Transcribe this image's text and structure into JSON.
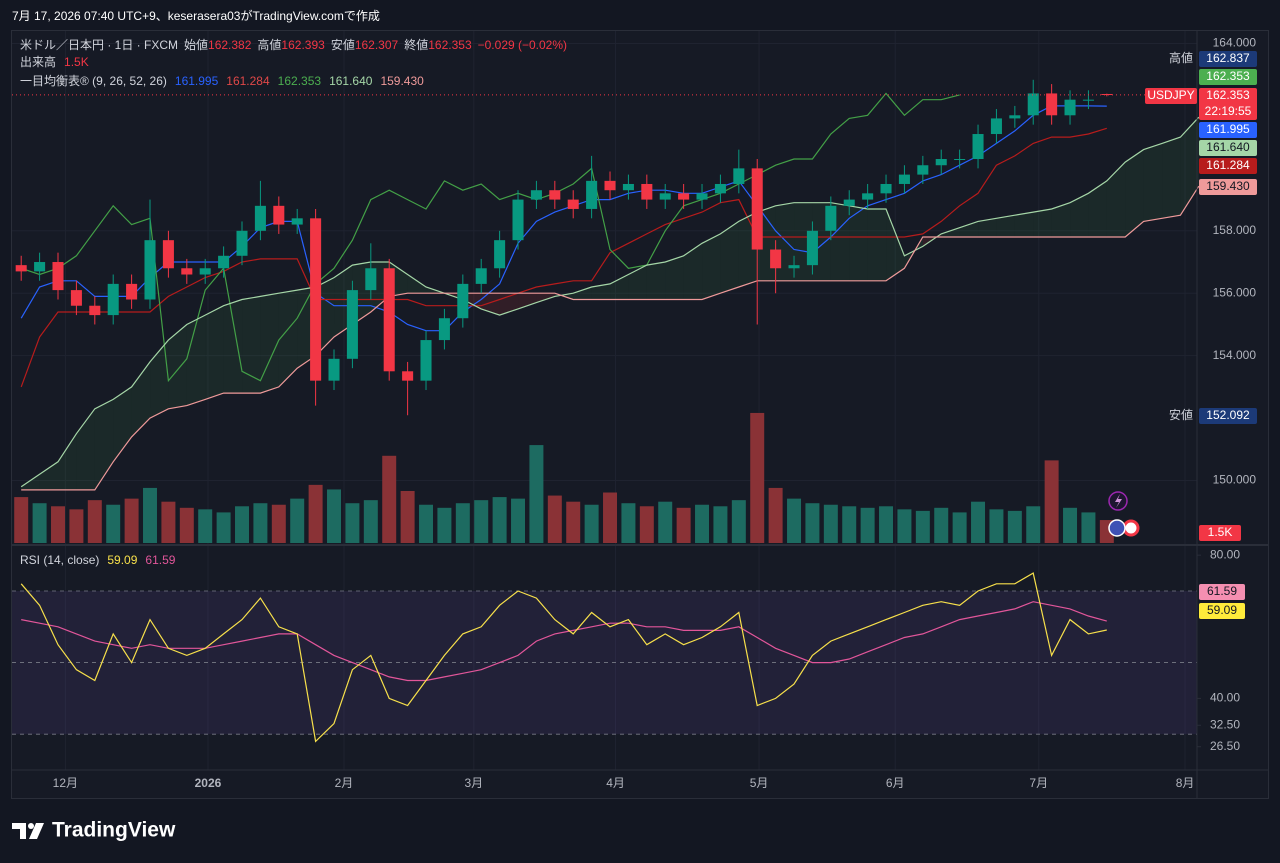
{
  "header": {
    "text": "7月 17, 2026 07:40 UTC+9、keserasera03がTradingView.comで作成"
  },
  "footer": {
    "brand": "TradingView"
  },
  "chart_data": [
    {
      "type": "candlestick",
      "title": "米ドル／日本円 · 1日 · FXCM",
      "symbol": "USDJPY",
      "countdown": "22:19:55",
      "ohlc_labels": [
        "始値",
        "高値",
        "安値",
        "終値"
      ],
      "change": "−0.029 (−0.02%)",
      "up_color": "#089981",
      "down_color": "#f23645",
      "grid": true,
      "xlim": [
        0,
        64.4
      ],
      "xticks": [
        {
          "value": 2.9,
          "label": "12月"
        },
        {
          "value": 10.65,
          "label": "2026"
        },
        {
          "value": 18.04,
          "label": "2月"
        },
        {
          "value": 25.1,
          "label": "3月"
        },
        {
          "value": 32.8,
          "label": "4月"
        },
        {
          "value": 40.6,
          "label": "5月"
        },
        {
          "value": 48.0,
          "label": "6月"
        },
        {
          "value": 55.8,
          "label": "7月"
        },
        {
          "value": 63.75,
          "label": "8月"
        }
      ],
      "ylim": [
        148.0,
        164.4
      ],
      "yticks": [
        {
          "value": 164,
          "label": "164.000"
        },
        {
          "value": 158,
          "label": "158.000"
        },
        {
          "value": 156,
          "label": "156.000"
        },
        {
          "value": 154,
          "label": "154.000"
        },
        {
          "value": 150,
          "label": "150.000"
        }
      ],
      "open": [
        156.9,
        156.7,
        157.0,
        156.1,
        155.6,
        155.3,
        156.3,
        155.8,
        157.7,
        156.8,
        156.6,
        156.8,
        157.2,
        158.0,
        158.8,
        158.2,
        158.4,
        153.2,
        153.9,
        156.1,
        156.8,
        153.5,
        153.2,
        154.5,
        155.2,
        156.3,
        156.8,
        157.7,
        159.0,
        159.3,
        159.0,
        158.7,
        159.6,
        159.3,
        159.5,
        159.0,
        159.2,
        159.0,
        159.2,
        159.5,
        160.0,
        157.4,
        156.8,
        156.9,
        158.0,
        158.8,
        159.0,
        159.2,
        159.5,
        159.8,
        160.1,
        160.3,
        160.3,
        161.1,
        161.6,
        161.7,
        162.4,
        161.7,
        162.2,
        162.382
      ],
      "high": [
        157.2,
        157.3,
        157.3,
        156.4,
        155.9,
        156.6,
        156.6,
        159.0,
        158.0,
        157.1,
        157.1,
        157.5,
        158.3,
        159.6,
        159.1,
        158.7,
        158.7,
        154.2,
        156.4,
        157.6,
        157.1,
        153.8,
        154.8,
        155.5,
        156.6,
        157.1,
        158.0,
        159.3,
        159.6,
        159.6,
        159.3,
        160.4,
        159.9,
        159.8,
        159.8,
        159.5,
        159.5,
        159.5,
        159.8,
        160.6,
        160.3,
        157.7,
        157.2,
        158.3,
        159.1,
        159.3,
        159.5,
        159.8,
        160.1,
        160.4,
        160.6,
        160.6,
        161.4,
        161.9,
        162.0,
        162.837,
        162.7,
        162.5,
        162.5,
        162.393
      ],
      "low": [
        156.4,
        156.4,
        155.8,
        155.3,
        155.0,
        155.0,
        155.5,
        155.5,
        156.5,
        156.3,
        156.3,
        156.5,
        156.9,
        157.7,
        157.9,
        157.9,
        152.4,
        152.9,
        153.6,
        155.8,
        153.2,
        152.092,
        152.9,
        154.2,
        154.9,
        156.0,
        156.5,
        157.4,
        158.7,
        158.7,
        158.4,
        158.4,
        159.0,
        159.0,
        158.7,
        158.7,
        158.7,
        158.7,
        158.9,
        159.2,
        155.0,
        156.0,
        156.5,
        156.6,
        157.7,
        158.5,
        158.7,
        158.9,
        159.2,
        159.5,
        159.8,
        160.0,
        160.0,
        160.8,
        161.3,
        161.4,
        161.4,
        161.4,
        161.9,
        162.307
      ],
      "close": [
        156.7,
        157.0,
        156.1,
        155.6,
        155.3,
        156.3,
        155.8,
        157.7,
        156.8,
        156.6,
        156.8,
        157.2,
        158.0,
        158.8,
        158.2,
        158.4,
        153.2,
        153.9,
        156.1,
        156.8,
        153.5,
        153.2,
        154.5,
        155.2,
        156.3,
        156.8,
        157.7,
        159.0,
        159.3,
        159.0,
        158.7,
        159.6,
        159.3,
        159.5,
        159.0,
        159.2,
        159.0,
        159.2,
        159.5,
        160.0,
        157.4,
        156.8,
        156.9,
        158.0,
        158.8,
        159.0,
        159.2,
        159.5,
        159.8,
        160.1,
        160.3,
        160.3,
        161.1,
        161.6,
        161.7,
        162.4,
        161.7,
        162.2,
        162.2,
        162.353
      ],
      "volume": {
        "name": "出来高",
        "ylim": [
          0,
          10000
        ],
        "up_color": "#1d6b61",
        "down_color": "#8a3236",
        "values": [
          3000,
          2600,
          2400,
          2200,
          2800,
          2500,
          2900,
          3600,
          2700,
          2300,
          2200,
          2000,
          2400,
          2600,
          2500,
          2900,
          3800,
          3500,
          2600,
          2800,
          5700,
          3400,
          2500,
          2300,
          2600,
          2800,
          3000,
          2900,
          6400,
          3100,
          2700,
          2500,
          3300,
          2600,
          2400,
          2700,
          2300,
          2500,
          2400,
          2800,
          8500,
          3600,
          2900,
          2600,
          2500,
          2400,
          2300,
          2400,
          2200,
          2100,
          2300,
          2000,
          2700,
          2200,
          2100,
          2400,
          5400,
          2300,
          2000,
          1500
        ],
        "last_label": "1.5K"
      },
      "ichimoku": {
        "name": "一目均衡表® (9, 26, 52, 26)",
        "cloud_up": "rgba(67,160,71,0.12)",
        "cloud_down": "rgba(244,67,54,0.12)",
        "series": [
          {
            "color": "#2962ff",
            "last_label": "161.995",
            "values": [
              155.2,
              156.2,
              156.4,
              156.4,
              155.9,
              155.9,
              155.9,
              156.5,
              157.0,
              157.0,
              157.0,
              157.0,
              157.5,
              158.1,
              158.3,
              158.3,
              156.0,
              155.6,
              155.6,
              155.6,
              155.4,
              155.0,
              154.8,
              154.8,
              155.4,
              155.8,
              156.3,
              157.6,
              158.3,
              158.6,
              158.8,
              159.0,
              159.0,
              159.2,
              159.3,
              159.3,
              159.2,
              159.2,
              159.4,
              159.6,
              158.8,
              158.0,
              157.4,
              157.3,
              157.8,
              158.4,
              158.8,
              159.0,
              159.2,
              159.6,
              159.8,
              160.1,
              160.4,
              160.8,
              161.2,
              161.7,
              162.0,
              162.0,
              162.0,
              161.995,
              null,
              null,
              null,
              null,
              null
            ]
          },
          {
            "color": "#b71c1c",
            "last_label": "161.284",
            "values": [
              153.0,
              154.6,
              155.4,
              155.4,
              155.4,
              155.4,
              155.4,
              155.4,
              155.9,
              156.2,
              156.5,
              156.7,
              157.0,
              157.1,
              157.1,
              157.1,
              155.8,
              155.8,
              155.8,
              155.8,
              155.8,
              155.8,
              155.6,
              155.6,
              155.6,
              155.6,
              155.8,
              156.0,
              156.2,
              156.3,
              156.4,
              156.4,
              157.3,
              157.6,
              157.9,
              158.2,
              158.4,
              158.6,
              158.9,
              159.0,
              157.8,
              157.8,
              157.8,
              157.8,
              157.8,
              157.8,
              157.8,
              157.8,
              157.8,
              157.9,
              158.3,
              158.8,
              159.2,
              160.1,
              160.4,
              160.8,
              161.0,
              161.0,
              161.1,
              161.284,
              null,
              null,
              null,
              null,
              null
            ]
          },
          {
            "color": "#43a047",
            "last_label": "162.353",
            "values": [
              156.8,
              156.6,
              156.8,
              157.2,
              158.0,
              158.8,
              158.2,
              158.4,
              153.2,
              153.9,
              156.1,
              156.8,
              153.5,
              153.2,
              154.5,
              155.2,
              156.3,
              156.8,
              157.7,
              159.0,
              159.3,
              159.0,
              158.7,
              159.6,
              159.3,
              159.5,
              159.0,
              159.2,
              159.0,
              159.2,
              159.5,
              160.0,
              157.4,
              156.8,
              156.9,
              158.0,
              158.8,
              159.0,
              159.2,
              159.5,
              159.8,
              160.1,
              160.3,
              160.3,
              161.1,
              161.6,
              161.7,
              162.4,
              161.7,
              162.2,
              162.2,
              162.353,
              null,
              null,
              null,
              null,
              null,
              null,
              null,
              null,
              null,
              null,
              null,
              null,
              null
            ]
          },
          {
            "color": "#a5d6a7",
            "last_label": "161.640",
            "values": [
              149.8,
              150.2,
              150.6,
              151.5,
              152.3,
              152.6,
              153.0,
              153.8,
              154.5,
              155.0,
              155.3,
              155.6,
              155.8,
              155.9,
              156.0,
              156.1,
              156.2,
              156.5,
              156.9,
              157.0,
              157.0,
              156.6,
              156.2,
              156.0,
              155.8,
              155.5,
              155.3,
              155.5,
              155.7,
              155.9,
              156.0,
              156.2,
              156.3,
              156.6,
              156.9,
              157.0,
              157.2,
              157.6,
              157.9,
              158.3,
              158.6,
              158.8,
              158.9,
              158.9,
              158.9,
              158.8,
              158.7,
              158.7,
              157.2,
              157.5,
              157.9,
              158.1,
              158.3,
              158.4,
              158.5,
              158.6,
              158.7,
              158.9,
              159.2,
              159.6,
              160.2,
              160.6,
              160.8,
              161.0,
              161.64
            ]
          },
          {
            "color": "#ef9a9a",
            "last_label": "159.430",
            "values": [
              149.7,
              149.7,
              149.7,
              149.7,
              149.7,
              150.6,
              151.4,
              152.0,
              152.3,
              152.4,
              152.6,
              152.8,
              152.8,
              152.8,
              153.0,
              153.6,
              154.0,
              154.6,
              155.0,
              155.4,
              155.9,
              156.0,
              156.0,
              156.0,
              156.0,
              156.0,
              156.0,
              156.0,
              156.0,
              156.0,
              155.8,
              155.8,
              155.8,
              155.8,
              155.8,
              155.8,
              155.8,
              155.8,
              156.0,
              156.2,
              156.4,
              156.4,
              156.4,
              156.4,
              156.4,
              156.4,
              156.4,
              156.4,
              156.8,
              157.8,
              157.8,
              157.8,
              157.8,
              157.8,
              157.8,
              157.8,
              157.8,
              157.8,
              157.8,
              157.8,
              157.8,
              158.3,
              158.4,
              158.5,
              159.43
            ]
          }
        ]
      }
    },
    {
      "type": "line",
      "title": "RSI (14, close)",
      "xlim": [
        0,
        64.4
      ],
      "ylim": [
        20,
        82
      ],
      "yticks": [
        {
          "value": 80,
          "label": "80.00"
        },
        {
          "value": 40,
          "label": "40.00"
        },
        {
          "value": 32.5,
          "label": "32.50"
        },
        {
          "value": 26.5,
          "label": "26.50"
        }
      ],
      "bands": [
        70,
        50,
        30
      ],
      "band_color": "rgba(126,87,194,0.12)",
      "series": [
        {
          "color": "#f7e04b",
          "values": [
            72,
            66,
            55,
            48,
            45,
            58,
            50,
            62,
            54,
            52,
            54,
            58,
            62,
            68,
            60,
            58,
            28,
            33,
            48,
            52,
            40,
            38,
            45,
            52,
            58,
            60,
            66,
            70,
            68,
            62,
            58,
            64,
            60,
            62,
            55,
            58,
            55,
            57,
            60,
            64,
            38,
            40,
            44,
            52,
            56,
            58,
            60,
            62,
            64,
            66,
            67,
            66,
            70,
            72,
            72,
            75,
            52,
            62,
            58,
            59.09
          ]
        },
        {
          "color": "#e2569a",
          "values": [
            62,
            61,
            60,
            58,
            56,
            55,
            54,
            55,
            54,
            54,
            54,
            55,
            56,
            57,
            58,
            58,
            55,
            52,
            50,
            48,
            46,
            45,
            45,
            46,
            47,
            48,
            50,
            52,
            56,
            58,
            59,
            60,
            61,
            61,
            60,
            60,
            59,
            59,
            59,
            60,
            57,
            54,
            52,
            50,
            50,
            51,
            53,
            55,
            57,
            58,
            60,
            62,
            63,
            64,
            65,
            67,
            66,
            65,
            63,
            61.59
          ]
        }
      ]
    }
  ]
}
